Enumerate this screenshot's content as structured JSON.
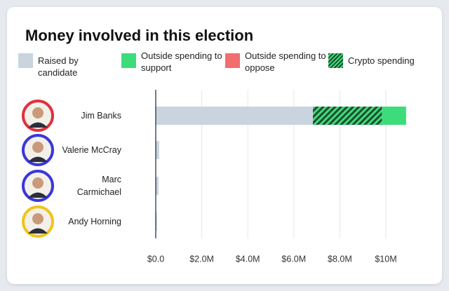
{
  "chart_data": {
    "type": "bar",
    "title": "Money involved in this election",
    "categories": [
      "Jim Banks",
      "Valerie McCray",
      "Marc Carmichael",
      "Andy Horning"
    ],
    "category_colors": [
      "#e0313d",
      "#3b37d8",
      "#3b37d8",
      "#f0c419"
    ],
    "series": [
      {
        "name": "Raised by candidate",
        "color": "#c9d4df",
        "values": [
          6830000,
          150000,
          120000,
          50000
        ]
      },
      {
        "name": "Outside spending to support",
        "color": "#3ddc7a",
        "values": [
          1050000,
          0,
          0,
          0
        ]
      },
      {
        "name": "Outside spending to oppose",
        "color": "#f26d6d",
        "values": [
          0,
          0,
          0,
          0
        ]
      },
      {
        "name": "Crypto spending",
        "color": "#1d4d2e",
        "pattern": "hatch",
        "values": [
          3000000,
          0,
          0,
          0
        ]
      }
    ],
    "xlim": [
      0,
      10900000
    ],
    "xticks": [
      {
        "value": 0,
        "label": "$0.0"
      },
      {
        "value": 2000000,
        "label": "$2.0M"
      },
      {
        "value": 4000000,
        "label": "$4.0M"
      },
      {
        "value": 6000000,
        "label": "$6.0M"
      },
      {
        "value": 8000000,
        "label": "$8.0M"
      },
      {
        "value": 10000000,
        "label": "$10M"
      }
    ],
    "grid": true
  }
}
